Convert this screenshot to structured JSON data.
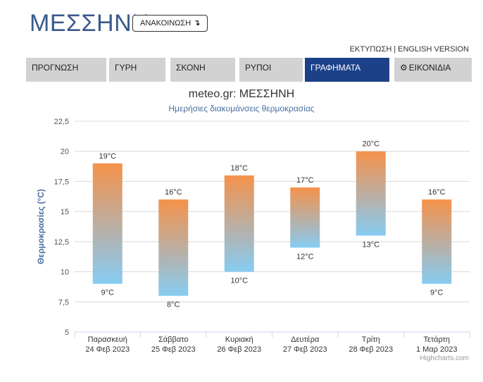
{
  "header": {
    "title": "ΜΕΣΣΗΝΗ",
    "announce_label": "ΑΝΑΚΟΙΝΩΣΗ",
    "announce_arrow": "↴",
    "print_link": "ΕΚΤΥΠΩΣΗ",
    "separator": "|",
    "english_link": "ENGLISH VERSION"
  },
  "tabs": [
    {
      "label": "ΠΡΟΓΝΩΣΗ"
    },
    {
      "label": "ΓΥΡΗ"
    },
    {
      "label": "ΣΚΟΝΗ"
    },
    {
      "label": "ΡΥΠΟΙ"
    },
    {
      "label": "ΓΡΑΦΗΜΑΤΑ",
      "active": true
    },
    {
      "label": "ΕΙΚΟΝΙΔΙΑ",
      "icon": "gear-icon"
    }
  ],
  "colors": {
    "tab_active": "#1d4189",
    "tab_inactive": "#d2d2d2",
    "bar_top": "#f5924a",
    "bar_bottom": "#86ccf2",
    "title": "#3a5a8c"
  },
  "chart_data": {
    "type": "columnrange",
    "title": "meteo.gr: ΜΕΣΣΗΝΗ",
    "subtitle": "Ημερήσιες διακυμάνσεις θερμοκρασίας",
    "ylabel": "Θερμοκρασίες (°C)",
    "ylim": [
      5,
      22.5
    ],
    "yticks": [
      "5",
      "7,5",
      "10",
      "12,5",
      "15",
      "17,5",
      "20",
      "22,5"
    ],
    "ytick_values": [
      5,
      7.5,
      10,
      12.5,
      15,
      17.5,
      20,
      22.5
    ],
    "grid": true,
    "categories": [
      {
        "day": "Παρασκευή",
        "date": "24 Φεβ 2023"
      },
      {
        "day": "Σάββατο",
        "date": "25 Φεβ 2023"
      },
      {
        "day": "Κυριακή",
        "date": "26 Φεβ 2023"
      },
      {
        "day": "Δευτέρα",
        "date": "27 Φεβ 2023"
      },
      {
        "day": "Τρίτη",
        "date": "28 Φεβ 2023"
      },
      {
        "day": "Τετάρτη",
        "date": "1 Μαρ 2023"
      }
    ],
    "low": [
      9,
      8,
      10,
      12,
      13,
      9
    ],
    "high": [
      19,
      16,
      18,
      17,
      20,
      16
    ],
    "low_labels": [
      "9°C",
      "8°C",
      "10°C",
      "12°C",
      "13°C",
      "9°C"
    ],
    "high_labels": [
      "19°C",
      "16°C",
      "18°C",
      "17°C",
      "20°C",
      "16°C"
    ]
  },
  "credits": "Highcharts.com"
}
